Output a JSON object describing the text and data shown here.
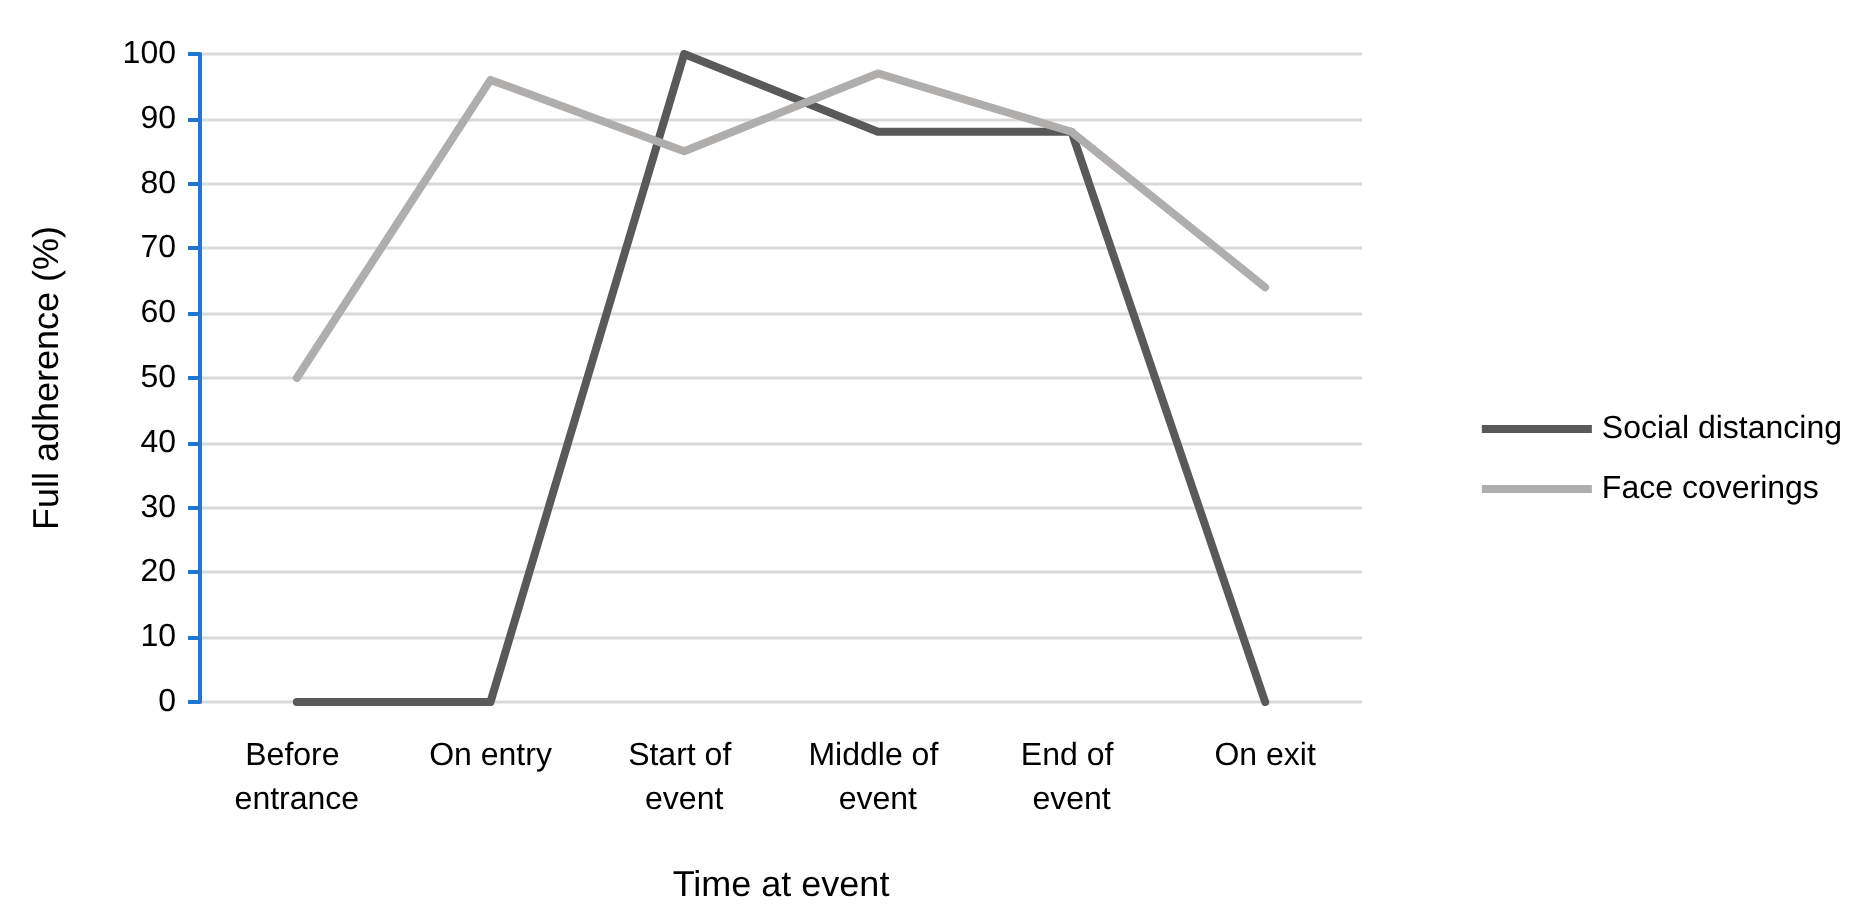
{
  "chart_data": {
    "type": "line",
    "xlabel": "Time at event",
    "ylabel": "Full adherence (%)",
    "categories": [
      "Before entrance",
      "On entry",
      "Start of event",
      "Middle of event",
      "End of event",
      "On exit"
    ],
    "series": [
      {
        "name": "Social distancing",
        "color": "#595959",
        "values": [
          0,
          0,
          100,
          88,
          88,
          0
        ]
      },
      {
        "name": "Face coverings",
        "color": "#b0adad",
        "values": [
          50,
          96,
          85,
          97,
          88,
          64
        ]
      }
    ],
    "ylim": [
      0,
      100
    ],
    "yticks": [
      0,
      10,
      20,
      30,
      40,
      50,
      60,
      70,
      80,
      90,
      100
    ],
    "grid": "y",
    "legend": "right",
    "marker": "none",
    "line_style": "solid"
  }
}
